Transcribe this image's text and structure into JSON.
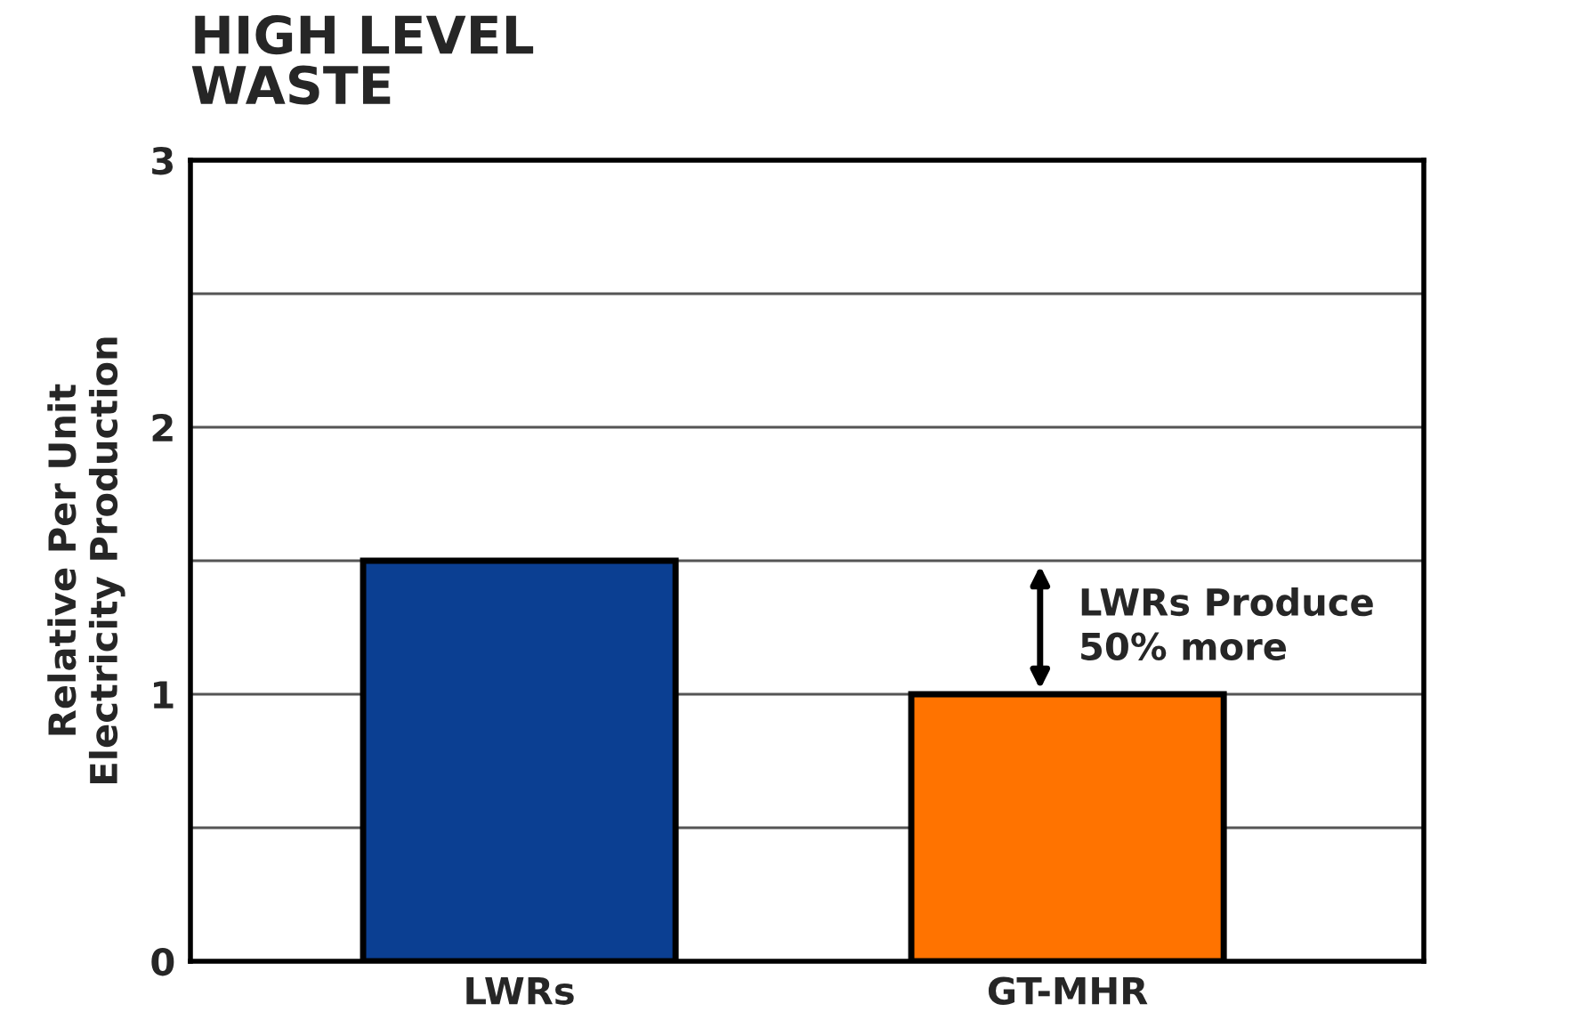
{
  "chart_data": {
    "type": "bar",
    "title": "HIGH LEVEL\nWASTE",
    "ylabel": "Relative Per Unit\nElectricity Production",
    "categories": [
      "LWRs",
      "GT-MHR"
    ],
    "values": [
      1.5,
      1.0
    ],
    "colors": [
      "#0b3f92",
      "#ff7300"
    ],
    "ylim": [
      0,
      3
    ],
    "yticks": [
      0,
      {
        "value": 0.5,
        "label": null
      },
      1,
      {
        "value": 1.5,
        "label": null
      },
      2,
      {
        "value": 2.5,
        "label": null
      },
      3
    ],
    "grid": "y",
    "annotations": [
      "LWRs Produce\n50% more"
    ]
  }
}
